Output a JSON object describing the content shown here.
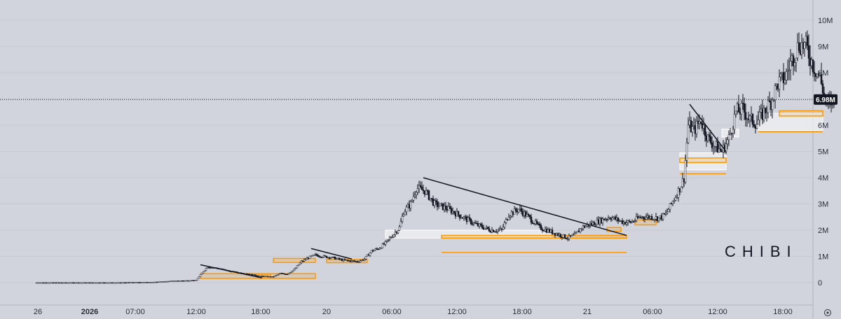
{
  "chart_data": {
    "type": "candlestick",
    "watermark": "CHIBI",
    "y_axis": {
      "ticks": [
        {
          "value": 0,
          "label": "0"
        },
        {
          "value": 1000000,
          "label": "1M"
        },
        {
          "value": 2000000,
          "label": "2M"
        },
        {
          "value": 3000000,
          "label": "3M"
        },
        {
          "value": 4000000,
          "label": "4M"
        },
        {
          "value": 5000000,
          "label": "5M"
        },
        {
          "value": 6000000,
          "label": "6M"
        },
        {
          "value": 7000000,
          "label": "7M"
        },
        {
          "value": 8000000,
          "label": "8M"
        },
        {
          "value": 9000000,
          "label": "9M"
        },
        {
          "value": 10000000,
          "label": "10M"
        }
      ],
      "range": [
        0,
        10000000
      ]
    },
    "x_axis": {
      "ticks": [
        {
          "label": "26",
          "bold": false
        },
        {
          "label": "2026",
          "bold": true
        },
        {
          "label": "07:00",
          "bold": false
        },
        {
          "label": "12:00",
          "bold": false
        },
        {
          "label": "18:00",
          "bold": false
        },
        {
          "label": "20",
          "bold": false
        },
        {
          "label": "06:00",
          "bold": false
        },
        {
          "label": "12:00",
          "bold": false
        },
        {
          "label": "18:00",
          "bold": false
        },
        {
          "label": "21",
          "bold": false
        },
        {
          "label": "06:00",
          "bold": false
        },
        {
          "label": "12:00",
          "bold": false
        },
        {
          "label": "18:00",
          "bold": false
        }
      ]
    },
    "current_price": {
      "value": 6980000,
      "label": "6.98M"
    },
    "price_path": [
      [
        0,
        0
      ],
      [
        60,
        0
      ],
      [
        85,
        20000
      ],
      [
        100,
        70000
      ],
      [
        110,
        80000
      ],
      [
        115,
        100000
      ],
      [
        118,
        300000
      ],
      [
        123,
        600000
      ],
      [
        130,
        550000
      ],
      [
        140,
        420000
      ],
      [
        150,
        350000
      ],
      [
        160,
        250000
      ],
      [
        170,
        220000
      ],
      [
        175,
        350000
      ],
      [
        180,
        330000
      ],
      [
        185,
        500000
      ],
      [
        190,
        800000
      ],
      [
        195,
        950000
      ],
      [
        200,
        1050000
      ],
      [
        205,
        1000000
      ],
      [
        212,
        950000
      ],
      [
        220,
        850000
      ],
      [
        230,
        800000
      ],
      [
        235,
        900000
      ],
      [
        240,
        1200000
      ],
      [
        245,
        1300000
      ],
      [
        250,
        1500000
      ],
      [
        255,
        1800000
      ],
      [
        260,
        2100000
      ],
      [
        263,
        2700000
      ],
      [
        268,
        3000000
      ],
      [
        272,
        3600000
      ],
      [
        278,
        3500000
      ],
      [
        285,
        3000000
      ],
      [
        295,
        2800000
      ],
      [
        305,
        2500000
      ],
      [
        315,
        2200000
      ],
      [
        325,
        2000000
      ],
      [
        333,
        2000000
      ],
      [
        338,
        2600000
      ],
      [
        345,
        2800000
      ],
      [
        352,
        2500000
      ],
      [
        360,
        2100000
      ],
      [
        370,
        1900000
      ],
      [
        380,
        1700000
      ],
      [
        385,
        1800000
      ],
      [
        390,
        2100000
      ],
      [
        400,
        2300000
      ],
      [
        410,
        2500000
      ],
      [
        420,
        2300000
      ],
      [
        425,
        2300000
      ],
      [
        432,
        2500000
      ],
      [
        440,
        2500000
      ],
      [
        445,
        2450000
      ],
      [
        450,
        2600000
      ],
      [
        455,
        3100000
      ],
      [
        460,
        3600000
      ],
      [
        463,
        4000000
      ],
      [
        466,
        6000000
      ],
      [
        470,
        5800000
      ],
      [
        475,
        6200000
      ],
      [
        480,
        5500000
      ],
      [
        485,
        5200000
      ],
      [
        490,
        5000000
      ],
      [
        495,
        5500000
      ],
      [
        500,
        6500000
      ],
      [
        505,
        6600000
      ],
      [
        510,
        6200000
      ],
      [
        515,
        6100000
      ],
      [
        520,
        6500000
      ],
      [
        525,
        6900000
      ],
      [
        530,
        7600000
      ],
      [
        535,
        7800000
      ],
      [
        540,
        8500000
      ],
      [
        545,
        9100000
      ],
      [
        550,
        9000000
      ],
      [
        555,
        8300000
      ],
      [
        560,
        7800000
      ],
      [
        565,
        6700000
      ],
      [
        570,
        7000000
      ]
    ],
    "zones": [
      {
        "kind": "box",
        "x": [
          118,
          200
        ],
        "y": [
          160000,
          340000
        ],
        "color": "#ff9800"
      },
      {
        "kind": "box",
        "x": [
          158,
          168
        ],
        "y": [
          220000,
          320000
        ],
        "color": "#ff9800"
      },
      {
        "kind": "box",
        "x": [
          170,
          200
        ],
        "y": [
          770000,
          920000
        ],
        "color": "#ff9800"
      },
      {
        "kind": "box",
        "x": [
          208,
          237
        ],
        "y": [
          760000,
          880000
        ],
        "color": "#ff9800"
      },
      {
        "kind": "box",
        "x": [
          250,
          368
        ],
        "y": [
          1700000,
          2000000
        ],
        "color": "#d9dadf"
      },
      {
        "kind": "box",
        "x": [
          290,
          422
        ],
        "y": [
          1700000,
          1800000
        ],
        "color": "#ff9800"
      },
      {
        "kind": "line",
        "x": [
          290,
          422
        ],
        "y": 1150000,
        "color": "#ff9800"
      },
      {
        "kind": "box",
        "x": [
          408,
          418
        ],
        "y": [
          1950000,
          2100000
        ],
        "color": "#ff9800"
      },
      {
        "kind": "box",
        "x": [
          428,
          443
        ],
        "y": [
          2200000,
          2400000
        ],
        "color": "#ff9800"
      },
      {
        "kind": "box",
        "x": [
          460,
          493
        ],
        "y": [
          4300000,
          4950000
        ],
        "color": "#d9dadf"
      },
      {
        "kind": "box",
        "x": [
          460,
          493
        ],
        "y": [
          4580000,
          4750000
        ],
        "color": "#ff9800"
      },
      {
        "kind": "line",
        "x": [
          460,
          493
        ],
        "y": 4150000,
        "color": "#ff9800"
      },
      {
        "kind": "box",
        "x": [
          490,
          502
        ],
        "y": [
          5550000,
          5850000
        ],
        "color": "#d9dadf"
      },
      {
        "kind": "box",
        "x": [
          516,
          562
        ],
        "y": [
          5800000,
          6450000
        ],
        "color": "#d9dadf"
      },
      {
        "kind": "box",
        "x": [
          531,
          562
        ],
        "y": [
          6350000,
          6550000
        ],
        "color": "#ff9800"
      },
      {
        "kind": "line",
        "x": [
          516,
          562
        ],
        "y": 5750000,
        "color": "#ff9800"
      }
    ],
    "trendlines": [
      {
        "from": [
          118,
          680000
        ],
        "to": [
          162,
          180000
        ]
      },
      {
        "from": [
          197,
          1300000
        ],
        "to": [
          226,
          900000
        ]
      },
      {
        "from": [
          277,
          4000000
        ],
        "to": [
          422,
          1800000
        ]
      },
      {
        "from": [
          467,
          6800000
        ],
        "to": [
          493,
          5000000
        ]
      }
    ]
  }
}
